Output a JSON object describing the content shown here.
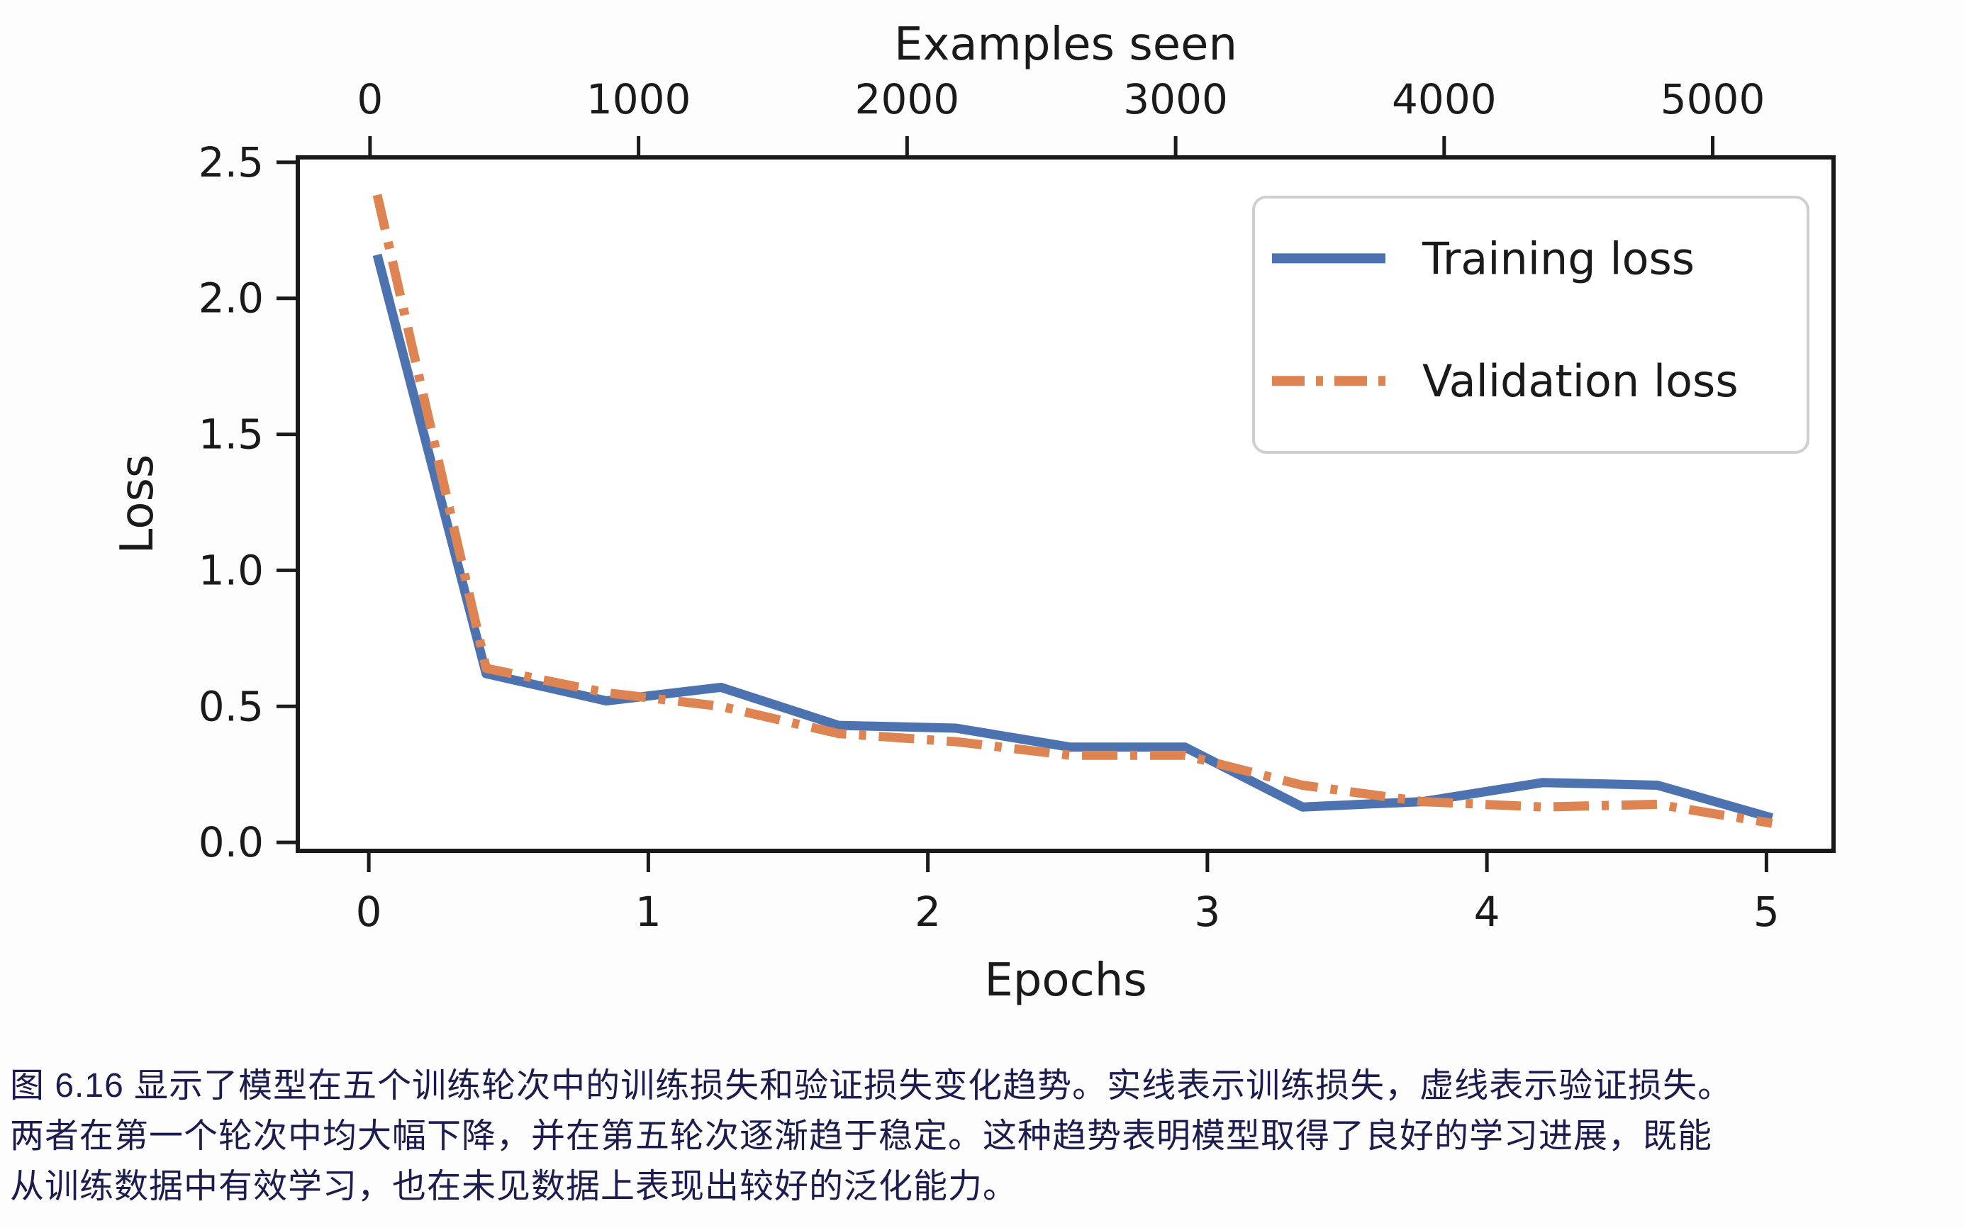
{
  "figure": {
    "caption_color": "#1c1c4e",
    "caption_lines": [
      "图 6.16 显示了模型在五个训练轮次中的训练损失和验证损失变化趋势。实线表示训练损失，虚线表示验证损失。",
      "两者在第一个轮次中均大幅下降，并在第五轮次逐渐趋于稳定。这种趋势表明模型取得了良好的学习进展，既能",
      "从训练数据中有效学习，也在未见数据上表现出较好的泛化能力。"
    ]
  },
  "chart_data": {
    "type": "line",
    "title": "",
    "xlabel": "Epochs",
    "ylabel": "Loss",
    "top_xlabel": "Examples seen",
    "xlim": [
      -0.254,
      5.24
    ],
    "ylim": [
      -0.031,
      2.518
    ],
    "top_xlim": [
      -269,
      5450
    ],
    "x_ticks": [
      0,
      1,
      2,
      3,
      4,
      5
    ],
    "y_ticks": [
      0.0,
      0.5,
      1.0,
      1.5,
      2.0,
      2.5
    ],
    "top_x_ticks": [
      0,
      1000,
      2000,
      3000,
      4000,
      5000
    ],
    "grid": false,
    "legend_position": "upper right",
    "axis_color": "#1a1a1a",
    "x": [
      0.03,
      0.42,
      0.85,
      1.26,
      1.68,
      2.1,
      2.51,
      2.92,
      3.34,
      3.77,
      4.2,
      4.61,
      5.02
    ],
    "series": [
      {
        "name": "Training loss",
        "color": "#4c72b0",
        "style": "solid",
        "values": [
          2.16,
          0.62,
          0.52,
          0.57,
          0.43,
          0.42,
          0.35,
          0.35,
          0.13,
          0.15,
          0.22,
          0.21,
          0.09
        ]
      },
      {
        "name": "Validation loss",
        "color": "#dd8452",
        "style": "dashdot",
        "values": [
          2.38,
          0.64,
          0.55,
          0.5,
          0.4,
          0.37,
          0.32,
          0.32,
          0.21,
          0.15,
          0.13,
          0.14,
          0.07
        ]
      }
    ]
  }
}
